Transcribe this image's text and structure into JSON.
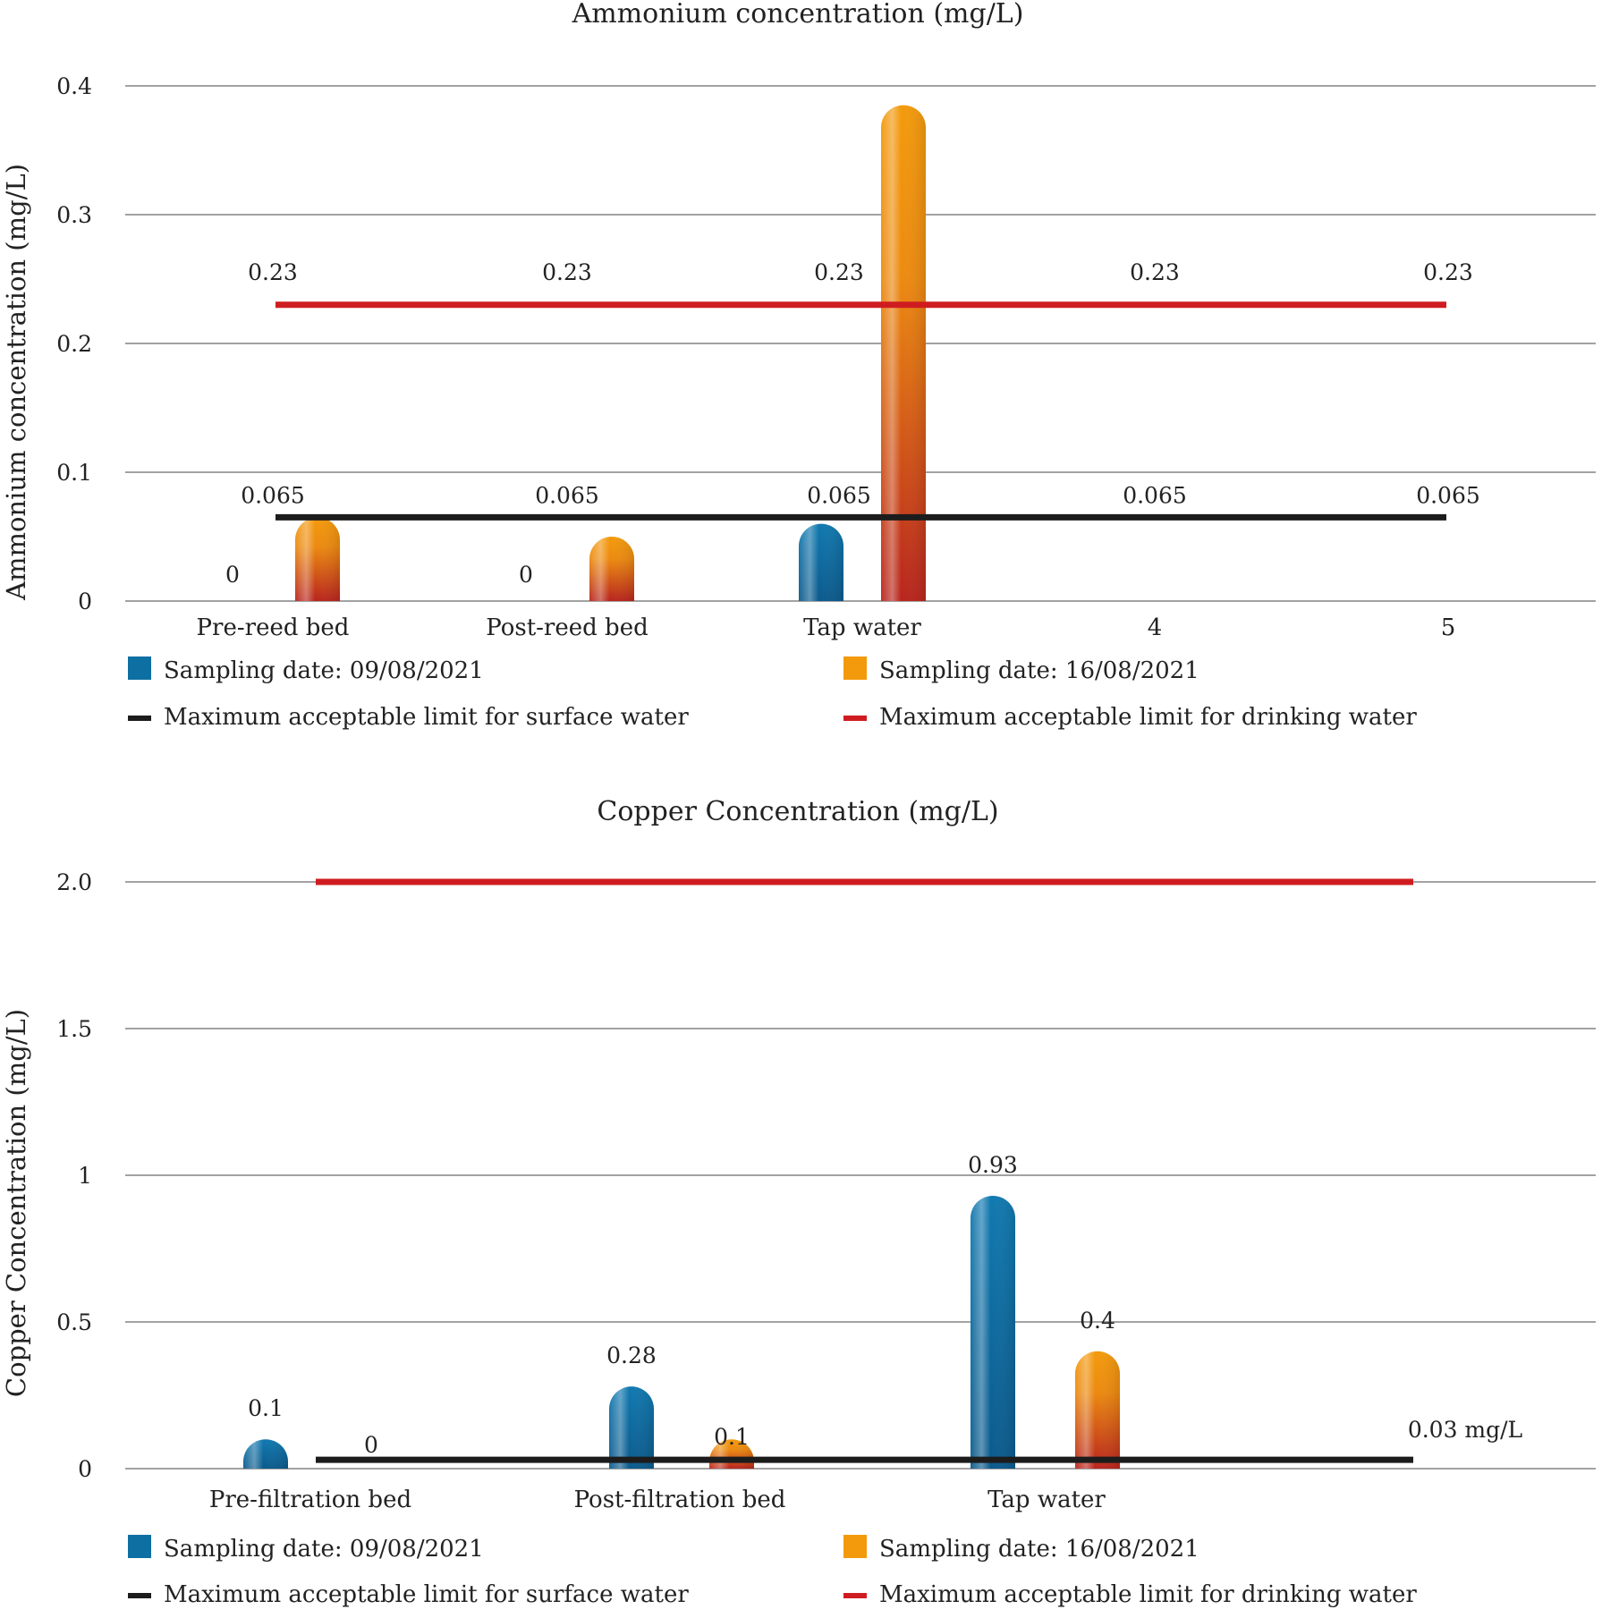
{
  "colors": {
    "blue": "#0e6fa3",
    "orange_top": "#f39a0c",
    "orange_bottom": "#b8241d",
    "limit_surface": "#1c1c1c",
    "limit_drinking": "#cf1c20",
    "gridline": "#6b6b6b"
  },
  "chart_data": [
    {
      "type": "bar",
      "title": "Ammonium concentration (mg/L)",
      "ylabel": "Ammonium concentration (mg/L)",
      "xlabel": "",
      "categories": [
        "Pre-reed bed",
        "Post-reed bed",
        "Tap water",
        "4",
        "5"
      ],
      "ylim": [
        0,
        0.4
      ],
      "yticks": [
        0,
        0.1,
        0.2,
        0.3,
        0.4
      ],
      "ytick_labels": [
        "0",
        "0.1",
        "0.2",
        "0.3",
        "0.4"
      ],
      "grid": true,
      "legend_position": "bottom",
      "series": [
        {
          "name": "Sampling date: 09/08/2021",
          "color_key": "blue",
          "values": [
            0,
            0,
            0.06,
            null,
            null
          ],
          "data_labels": [
            "0",
            "0",
            "",
            "",
            ""
          ]
        },
        {
          "name": "Sampling date: 16/08/2021",
          "color_key": "orange",
          "values": [
            0.065,
            0.05,
            0.385,
            null,
            null
          ],
          "data_labels": [
            "",
            "",
            "",
            "",
            ""
          ]
        }
      ],
      "reference_lines": [
        {
          "name": "Maximum acceptable limit for surface water",
          "color_key": "limit_surface",
          "values": [
            0.065,
            0.065,
            0.065,
            0.065,
            0.065
          ],
          "labels": [
            "0.065",
            "0.065",
            "0.065",
            "0.065",
            "0.065"
          ]
        },
        {
          "name": "Maximum acceptable limit for drinking water",
          "color_key": "limit_drinking",
          "values": [
            0.23,
            0.23,
            0.23,
            0.23,
            0.23
          ],
          "labels": [
            "0.23",
            "0.23",
            "0.23",
            "0.23",
            "0.23"
          ]
        }
      ]
    },
    {
      "type": "bar",
      "title": "Copper Concentration (mg/L)",
      "ylabel": "Copper Concentration (mg/L)",
      "xlabel": "",
      "categories": [
        "Pre-filtration bed",
        "Post-filtration bed",
        "Tap water",
        ""
      ],
      "ylim": [
        0,
        2
      ],
      "yticks": [
        0,
        0.5,
        1,
        1.5,
        2
      ],
      "ytick_labels": [
        "0",
        "0.5",
        "1",
        "1.5",
        "2.0"
      ],
      "grid": true,
      "legend_position": "bottom",
      "series": [
        {
          "name": "Sampling date: 09/08/2021",
          "color_key": "blue",
          "values": [
            0.1,
            0.28,
            0.93,
            null
          ],
          "data_labels": [
            "0.1",
            "0.28",
            "0.93",
            ""
          ]
        },
        {
          "name": "Sampling date: 16/08/2021",
          "color_key": "orange",
          "values": [
            0,
            0.1,
            0.4,
            null
          ],
          "data_labels": [
            "0",
            "0.1",
            "0.4",
            ""
          ]
        }
      ],
      "reference_lines": [
        {
          "name": "Maximum acceptable limit for surface water",
          "color_key": "limit_surface",
          "values": [
            0.03,
            0.03,
            0.03,
            0.03
          ],
          "end_label": "0.03 mg/L"
        },
        {
          "name": "Maximum acceptable limit for drinking water",
          "color_key": "limit_drinking",
          "values": [
            2,
            2,
            2,
            2
          ]
        }
      ]
    }
  ]
}
